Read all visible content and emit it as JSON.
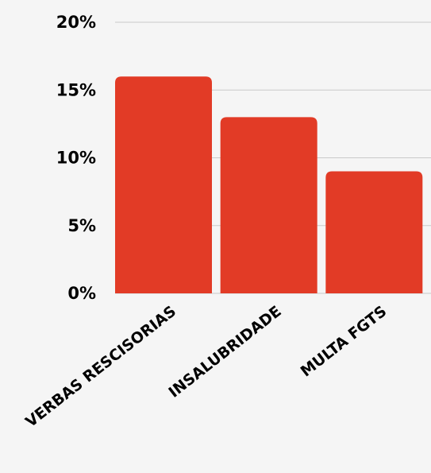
{
  "chart_data": {
    "type": "bar",
    "categories": [
      "VERBAS RESCISORIAS",
      "INSALUBRIDADE",
      "MULTA FGTS"
    ],
    "values": [
      16,
      13,
      9
    ],
    "ylim": [
      0,
      20
    ],
    "y_ticks": [
      0,
      5,
      10,
      15,
      20
    ],
    "y_tick_labels": [
      "0%",
      "5%",
      "10%",
      "15%",
      "20%"
    ],
    "title": "",
    "xlabel": "",
    "ylabel": "",
    "grid": "horizontal",
    "legend": "none",
    "colors": {
      "bar": "#e23b26",
      "grid": "#c9c9c9",
      "background": "#f5f5f5",
      "text": "#000000"
    }
  }
}
